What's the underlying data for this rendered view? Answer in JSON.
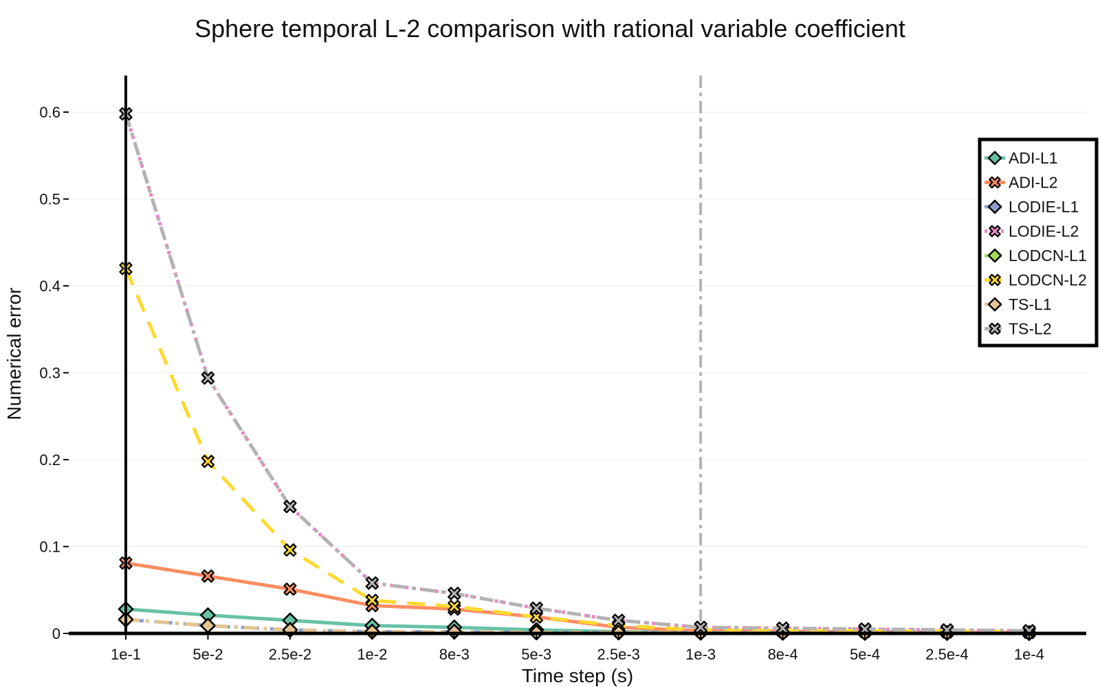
{
  "chart_data": {
    "type": "line",
    "title": "Sphere temporal L-2 comparison with rational variable coefficient",
    "xlabel": "Time step (s)",
    "ylabel": "Numerical error",
    "categories": [
      "1e-1",
      "5e-2",
      "2.5e-2",
      "1e-2",
      "8e-3",
      "5e-3",
      "2.5e-3",
      "1e-3",
      "8e-4",
      "5e-4",
      "2.5e-4",
      "1e-4"
    ],
    "ylim": [
      0,
      0.65
    ],
    "yticks": [
      0,
      0.1,
      0.2,
      0.3,
      0.4,
      0.5,
      0.6
    ],
    "ytick_labels": [
      "0",
      "0.1",
      "0.2",
      "0.3",
      "0.4",
      "0.5",
      "0.6"
    ],
    "grid": "horizontal",
    "legend_position": "top-right",
    "vertical_line_at": "1e-3",
    "series": [
      {
        "name": "ADI-L1",
        "color": "#66c2a5",
        "marker": "diamond",
        "dash": "solid",
        "values": [
          0.028,
          0.021,
          0.015,
          0.009,
          0.007,
          0.004,
          0.002,
          0.001,
          0.0008,
          0.0006,
          0.0004,
          0.0003
        ]
      },
      {
        "name": "ADI-L2",
        "color": "#fc8d62",
        "marker": "x",
        "dash": "solid",
        "values": [
          0.081,
          0.066,
          0.051,
          0.032,
          0.028,
          0.019,
          0.007,
          0.003,
          0.0025,
          0.002,
          0.0015,
          0.001
        ]
      },
      {
        "name": "LODIE-L1",
        "color": "#8da0cb",
        "marker": "diamond",
        "dash": "dash",
        "values": [
          0.016,
          0.009,
          0.004,
          0.002,
          0.002,
          0.001,
          0.001,
          0.0008,
          0.0007,
          0.0006,
          0.0005,
          0.0004
        ]
      },
      {
        "name": "LODIE-L2",
        "color": "#e78ac3",
        "marker": "x",
        "dash": "dot",
        "values": [
          0.598,
          0.294,
          0.146,
          0.058,
          0.046,
          0.029,
          0.015,
          0.007,
          0.006,
          0.005,
          0.004,
          0.003
        ]
      },
      {
        "name": "LODCN-L1",
        "color": "#a6d854",
        "marker": "diamond",
        "dash": "dashdot",
        "values": [
          0.016,
          0.009,
          0.004,
          0.002,
          0.002,
          0.001,
          0.001,
          0.0008,
          0.0007,
          0.0006,
          0.0005,
          0.0004
        ]
      },
      {
        "name": "LODCN-L2",
        "color": "#ffd92f",
        "marker": "x",
        "dash": "dash",
        "values": [
          0.42,
          0.198,
          0.096,
          0.038,
          0.031,
          0.019,
          0.009,
          0.004,
          0.0035,
          0.003,
          0.0025,
          0.002
        ]
      },
      {
        "name": "TS-L1",
        "color": "#e5c494",
        "marker": "diamond",
        "dash": "dashdot",
        "values": [
          0.016,
          0.009,
          0.004,
          0.002,
          0.002,
          0.001,
          0.001,
          0.0008,
          0.0007,
          0.0006,
          0.0005,
          0.0004
        ]
      },
      {
        "name": "TS-L2",
        "color": "#b3b3b3",
        "marker": "x",
        "dash": "dashdot",
        "values": [
          0.598,
          0.294,
          0.146,
          0.058,
          0.046,
          0.029,
          0.015,
          0.007,
          0.006,
          0.005,
          0.004,
          0.003
        ]
      }
    ]
  }
}
